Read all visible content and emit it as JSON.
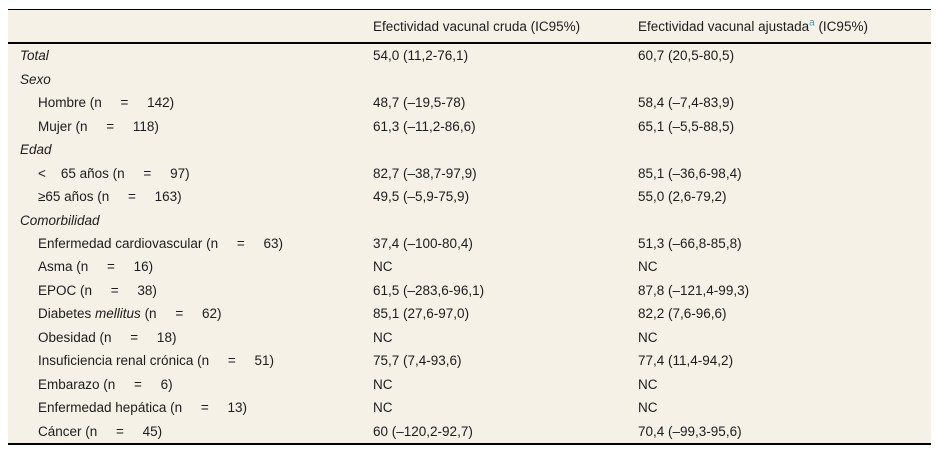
{
  "colors": {
    "table_bg": "#f5f1e6",
    "text": "#1c1c1c",
    "rule": "#000000",
    "footnote_marker": "#4199c9"
  },
  "table": {
    "header": {
      "empty": "",
      "cruda": "Efectividad vacunal cruda (IC95%)",
      "ajustada_pre": "Efectividad vacunal ajustada",
      "ajustada_sup": "a",
      "ajustada_post": " (IC95%)"
    },
    "rows": [
      {
        "style": "group",
        "label_parts": [
          {
            "text": "Total"
          }
        ],
        "cruda": "54,0 (11,2-76,1)",
        "ajustada": "60,7 (20,5-80,5)"
      },
      {
        "style": "group",
        "label_parts": [
          {
            "text": "Sexo"
          }
        ],
        "cruda": "",
        "ajustada": ""
      },
      {
        "style": "item",
        "label_parts": [
          {
            "text": "Hombre (n     =     142)"
          }
        ],
        "cruda": "48,7 (–19,5-78)",
        "ajustada": "58,4 (–7,4-83,9)"
      },
      {
        "style": "item",
        "label_parts": [
          {
            "text": "Mujer (n     =     118)"
          }
        ],
        "cruda": "61,3 (–11,2-86,6)",
        "ajustada": "65,1 (–5,5-88,5)"
      },
      {
        "style": "group",
        "label_parts": [
          {
            "text": "Edad"
          }
        ],
        "cruda": "",
        "ajustada": ""
      },
      {
        "style": "item",
        "label_parts": [
          {
            "text": "<    65 años (n     =     97)"
          }
        ],
        "cruda": "82,7 (–38,7-97,9)",
        "ajustada": "85,1 (–36,6-98,4)"
      },
      {
        "style": "item",
        "label_parts": [
          {
            "text": "≥65 años (n     =     163)"
          }
        ],
        "cruda": "49,5 (–5,9-75,9)",
        "ajustada": "55,0 (2,6-79,2)"
      },
      {
        "style": "group",
        "label_parts": [
          {
            "text": "Comorbilidad"
          }
        ],
        "cruda": "",
        "ajustada": ""
      },
      {
        "style": "item",
        "label_parts": [
          {
            "text": "Enfermedad cardiovascular (n     =     63)"
          }
        ],
        "cruda": "37,4 (–100-80,4)",
        "ajustada": "51,3 (–66,8-85,8)"
      },
      {
        "style": "item",
        "label_parts": [
          {
            "text": "Asma (n     =     16)"
          }
        ],
        "cruda": "NC",
        "ajustada": "NC"
      },
      {
        "style": "item",
        "label_parts": [
          {
            "text": "EPOC (n     =     38)"
          }
        ],
        "cruda": "61,5 (–283,6-96,1)",
        "ajustada": "87,8 (–121,4-99,3)"
      },
      {
        "style": "item",
        "label_parts": [
          {
            "text": "Diabetes "
          },
          {
            "text": "mellitus",
            "italic": true
          },
          {
            "text": " (n     =     62)"
          }
        ],
        "cruda": "85,1 (27,6-97,0)",
        "ajustada": "82,2 (7,6-96,6)"
      },
      {
        "style": "item",
        "label_parts": [
          {
            "text": "Obesidad (n     =     18)"
          }
        ],
        "cruda": "NC",
        "ajustada": "NC"
      },
      {
        "style": "item",
        "label_parts": [
          {
            "text": "Insuficiencia renal crónica (n     =     51)"
          }
        ],
        "cruda": "75,7 (7,4-93,6)",
        "ajustada": "77,4 (11,4-94,2)"
      },
      {
        "style": "item",
        "label_parts": [
          {
            "text": "Embarazo (n     =     6)"
          }
        ],
        "cruda": "NC",
        "ajustada": "NC"
      },
      {
        "style": "item",
        "label_parts": [
          {
            "text": "Enfermedad hepática (n     =     13)"
          }
        ],
        "cruda": "NC",
        "ajustada": "NC"
      },
      {
        "style": "item",
        "label_parts": [
          {
            "text": "Cáncer (n     =     45)"
          }
        ],
        "cruda": "60 (–120,2-92,7)",
        "ajustada": "70,4 (–99,3-95,6)"
      }
    ]
  }
}
